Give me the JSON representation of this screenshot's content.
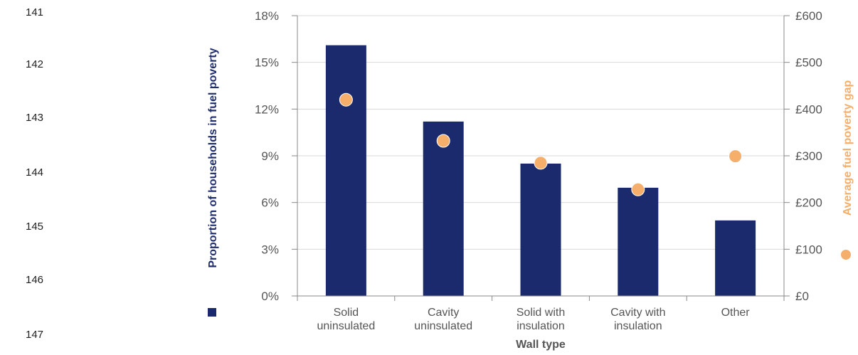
{
  "line_numbers": [
    "141",
    "142",
    "143",
    "144",
    "145",
    "146",
    "147"
  ],
  "colors": {
    "bar": "#1a2a6c",
    "dot": "#f6ae6b",
    "grid": "#d9d9d9",
    "axis": "#888888"
  },
  "chart_data": {
    "type": "bar",
    "categories": [
      [
        "Solid",
        "uninsulated"
      ],
      [
        "Cavity",
        "uninsulated"
      ],
      [
        "Solid with",
        "insulation"
      ],
      [
        "Cavity with",
        "insulation"
      ],
      [
        "Other"
      ]
    ],
    "series": [
      {
        "name": "Proportion of households in fuel poverty",
        "type": "bar",
        "axis": "left",
        "values": [
          16.1,
          11.2,
          8.5,
          6.95,
          4.85
        ]
      },
      {
        "name": "Average fuel poverty gap",
        "type": "scatter",
        "axis": "right",
        "values": [
          420,
          332,
          285,
          228,
          299
        ]
      }
    ],
    "xlabel": "Wall type",
    "ylabel_left": "Proportion of households in fuel poverty",
    "ylabel_right": "Average fuel poverty gap",
    "ylim_left": [
      0,
      18
    ],
    "ylim_right": [
      0,
      600
    ],
    "yticks_left": [
      "0%",
      "3%",
      "6%",
      "9%",
      "12%",
      "15%",
      "18%"
    ],
    "yticks_right": [
      "£0",
      "£100",
      "£200",
      "£300",
      "£400",
      "£500",
      "£600"
    ],
    "grid": true,
    "legend": "inline-with-axis-titles"
  }
}
